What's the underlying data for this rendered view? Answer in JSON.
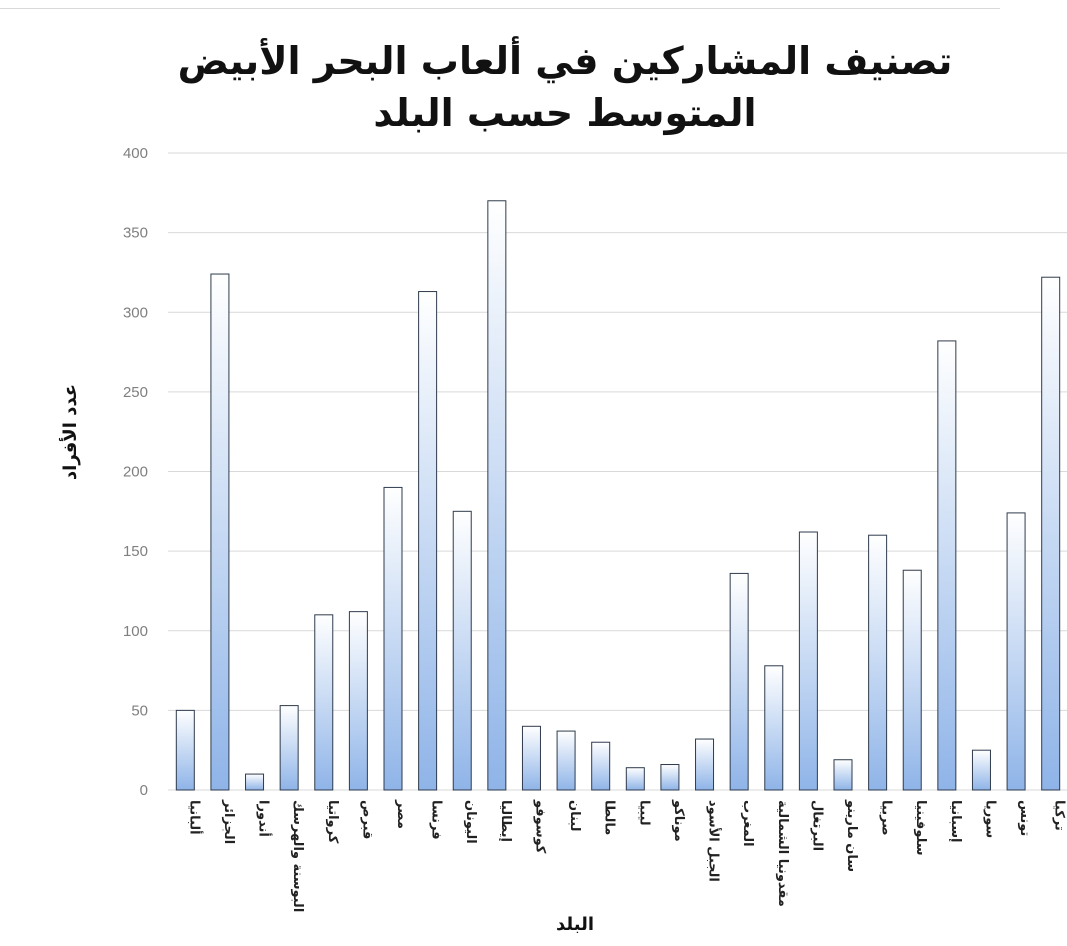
{
  "chart_data": {
    "type": "bar",
    "title": "تصنيف المشاركين في ألعاب البحر الأبيض المتوسط حسب البلد",
    "title_lines": [
      "تصنيف المشاركين في ألعاب البحر الأبيض",
      "المتوسط حسب البلد"
    ],
    "xlabel": "البلد",
    "ylabel": "عدد الأفراد",
    "ylim": [
      0,
      400
    ],
    "yticks": [
      0,
      50,
      100,
      150,
      200,
      250,
      300,
      350,
      400
    ],
    "grid": true,
    "legend": "none",
    "colors": {
      "bar_top": "#ffffff",
      "bar_bottom": "#8fb4e8",
      "bar_stroke": "#2f3b4c",
      "grid": "#d9d9d9"
    },
    "categories": [
      "ألبانيا",
      "الجزائر",
      "أندورا",
      "البوسنة والهرسك",
      "كرواتيا",
      "قبرص",
      "مصر",
      "فرنسا",
      "اليونان",
      "إيطاليا",
      "كوسوفو",
      "لبنان",
      "مالطا",
      "ليبيا",
      "موناكو",
      "الجبل الأسود",
      "المغرب",
      "مقدونيا الشمالية",
      "البرتغال",
      "سان مارينو",
      "صربيا",
      "سلوفينيا",
      "إسبانيا",
      "سوريا",
      "تونس",
      "تركيا"
    ],
    "values": [
      50,
      324,
      10,
      53,
      110,
      112,
      190,
      313,
      175,
      370,
      40,
      37,
      30,
      14,
      16,
      32,
      136,
      78,
      162,
      19,
      160,
      138,
      282,
      25,
      174,
      322
    ]
  }
}
